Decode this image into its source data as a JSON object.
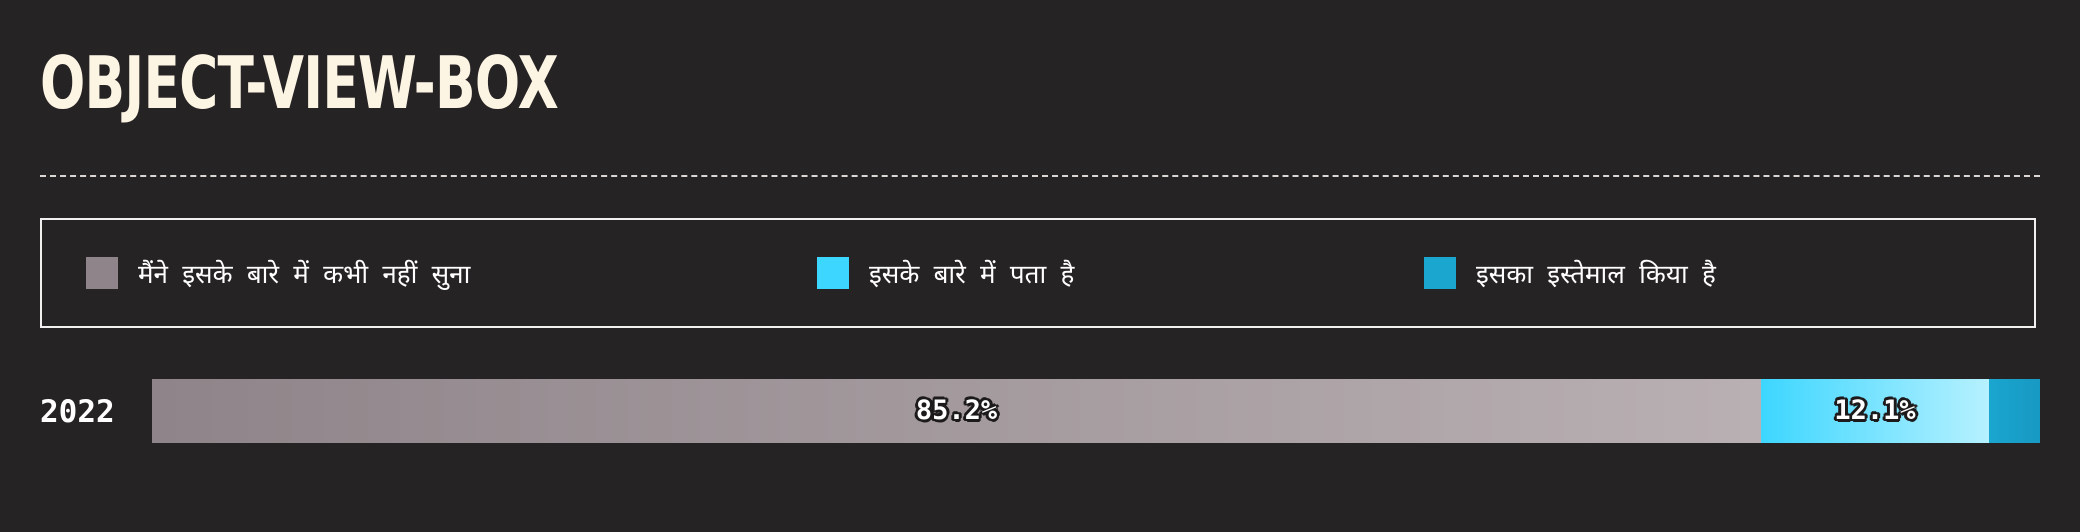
{
  "chart_data": {
    "type": "bar",
    "orientation": "horizontal",
    "stacked": true,
    "title": "OBJECT-VIEW-BOX",
    "categories": [
      "2022"
    ],
    "series": [
      {
        "name": "मैंने इसके बारे में कभी नहीं सुना",
        "values": [
          85.2
        ],
        "label": "85.2%",
        "color": "#8e8489",
        "color_end": "#b9b0b3"
      },
      {
        "name": "इसके बारे में पता है",
        "values": [
          12.1
        ],
        "label": "12.1%",
        "color": "#3dd6ff",
        "color_end": "#b6f1ff"
      },
      {
        "name": "इसका इस्तेमाल किया है",
        "values": [
          2.7
        ],
        "label": "",
        "color": "#1aa6cf",
        "color_end": "#1799c3"
      }
    ],
    "xlim": [
      0,
      100
    ],
    "legend_position": "top",
    "grid": false
  }
}
